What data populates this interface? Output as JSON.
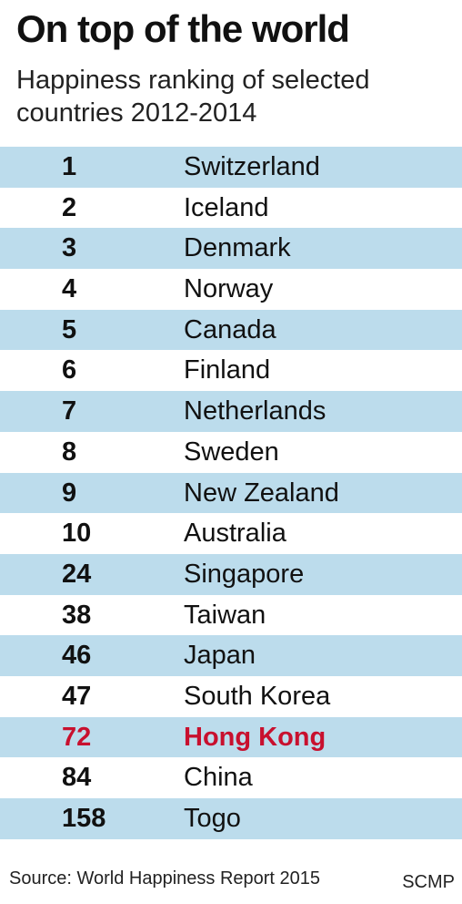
{
  "chart_data": {
    "type": "table",
    "title": "On top of the world",
    "subtitle": "Happiness ranking of selected countries 2012-2014",
    "rows": [
      {
        "rank": "1",
        "country": "Switzerland"
      },
      {
        "rank": "2",
        "country": "Iceland"
      },
      {
        "rank": "3",
        "country": "Denmark"
      },
      {
        "rank": "4",
        "country": "Norway"
      },
      {
        "rank": "5",
        "country": "Canada"
      },
      {
        "rank": "6",
        "country": "Finland"
      },
      {
        "rank": "7",
        "country": "Netherlands"
      },
      {
        "rank": "8",
        "country": "Sweden"
      },
      {
        "rank": "9",
        "country": "New Zealand"
      },
      {
        "rank": "10",
        "country": "Australia"
      },
      {
        "rank": "24",
        "country": "Singapore"
      },
      {
        "rank": "38",
        "country": "Taiwan"
      },
      {
        "rank": "46",
        "country": "Japan"
      },
      {
        "rank": "47",
        "country": "South Korea"
      },
      {
        "rank": "72",
        "country": "Hong Kong",
        "highlighted": true
      },
      {
        "rank": "84",
        "country": "China"
      },
      {
        "rank": "158",
        "country": "Togo"
      }
    ],
    "row_shading": "alternating",
    "colors": {
      "shaded_row": "#bcdcec",
      "highlight": "#c8102e",
      "text": "#111111"
    },
    "source": "Source: World Happiness Report 2015",
    "credit": "SCMP"
  }
}
